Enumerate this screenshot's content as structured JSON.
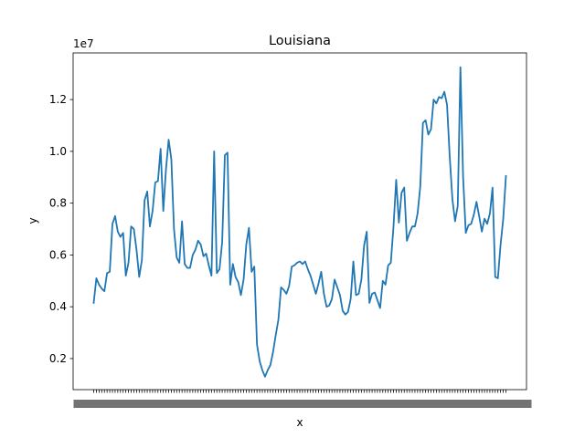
{
  "chart_data": {
    "type": "line",
    "title": "Louisiana",
    "xlabel": "x",
    "ylabel": "y",
    "y_offset_label": "1e7",
    "y_tick_labels": [
      "0.2",
      "0.4",
      "0.6",
      "0.8",
      "1.0",
      "1.2"
    ],
    "y_tick_values": [
      2000000,
      4000000,
      6000000,
      8000000,
      10000000,
      12000000
    ],
    "ylim": [
      800000,
      13800000
    ],
    "grid": false,
    "line_color": "#1f77b4",
    "series": [
      {
        "values": [
          4150000,
          5100000,
          4850000,
          4700000,
          4600000,
          5300000,
          5350000,
          7200000,
          7500000,
          6900000,
          6700000,
          6850000,
          5200000,
          5700000,
          7100000,
          7000000,
          6200000,
          5150000,
          5800000,
          8100000,
          8450000,
          7100000,
          7700000,
          8800000,
          8850000,
          10100000,
          7700000,
          9300000,
          10450000,
          9700000,
          7000000,
          5900000,
          5700000,
          7300000,
          5650000,
          5500000,
          5500000,
          6000000,
          6200000,
          6550000,
          6400000,
          5950000,
          6050000,
          5600000,
          5200000,
          10000000,
          5300000,
          5450000,
          6500000,
          9850000,
          9950000,
          4850000,
          5650000,
          5150000,
          4950000,
          4450000,
          5050000,
          6400000,
          7050000,
          5350000,
          5550000,
          2550000,
          1900000,
          1550000,
          1300000,
          1550000,
          1750000,
          2250000,
          2900000,
          3500000,
          4750000,
          4650000,
          4500000,
          4800000,
          5550000,
          5600000,
          5700000,
          5750000,
          5650000,
          5750000,
          5450000,
          5200000,
          4850000,
          4500000,
          4900000,
          5350000,
          4500000,
          4000000,
          4050000,
          4300000,
          5050000,
          4750000,
          4450000,
          3850000,
          3700000,
          3800000,
          4300000,
          5750000,
          4450000,
          4500000,
          5050000,
          6350000,
          6900000,
          4150000,
          4500000,
          4550000,
          4250000,
          3950000,
          5000000,
          4850000,
          5600000,
          5700000,
          7100000,
          8900000,
          7250000,
          8400000,
          8600000,
          6550000,
          6850000,
          7100000,
          7100000,
          7600000,
          8650000,
          11100000,
          11200000,
          10650000,
          10850000,
          12000000,
          11850000,
          12100000,
          12050000,
          12300000,
          11800000,
          9800000,
          8150000,
          7300000,
          7900000,
          13250000,
          9000000,
          6850000,
          7150000,
          7200000,
          7550000,
          8050000,
          7500000,
          6900000,
          7400000,
          7200000,
          7600000,
          8600000,
          5150000,
          5100000,
          6400000,
          7400000,
          9050000
        ]
      }
    ]
  }
}
